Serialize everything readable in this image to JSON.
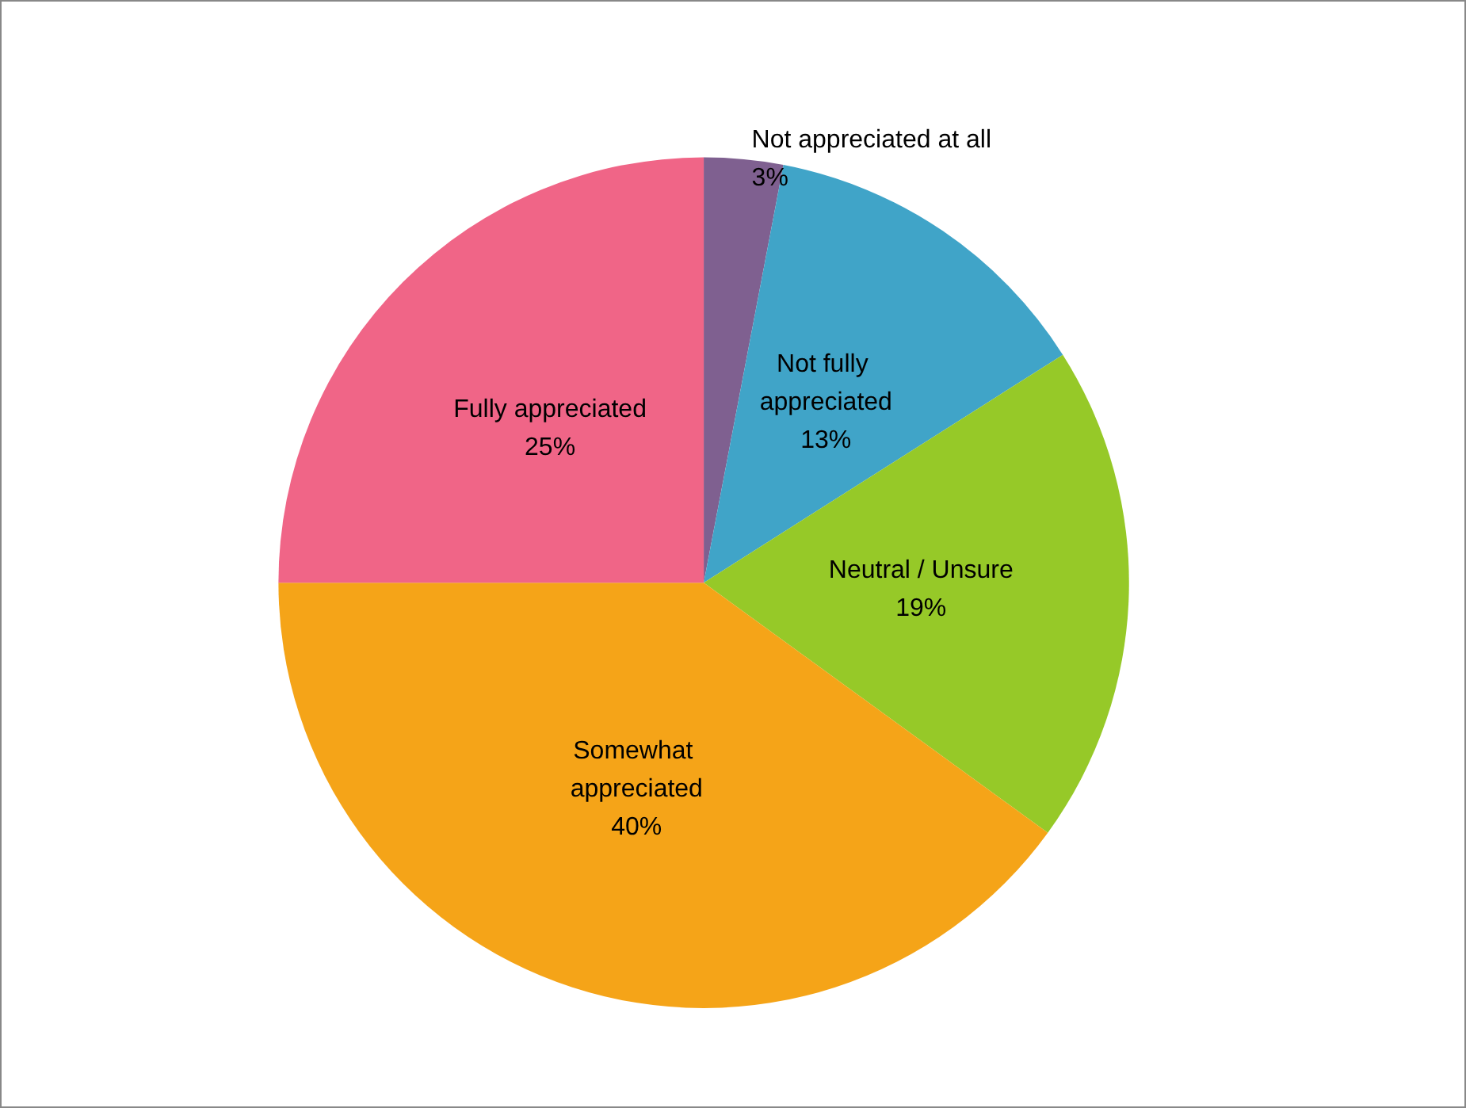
{
  "chart_data": {
    "type": "pie",
    "categories": [
      "Not appreciated at all",
      "Not fully appreciated",
      "Neutral / Unsure",
      "Somewhat appreciated",
      "Fully appreciated"
    ],
    "values": [
      3,
      13,
      19,
      40,
      25
    ],
    "colors": [
      "#7f6090",
      "#40a4c8",
      "#96c928",
      "#f5a418",
      "#f06587"
    ],
    "value_labels": [
      "3%",
      "13%",
      "19%",
      "40%",
      "25%"
    ]
  }
}
